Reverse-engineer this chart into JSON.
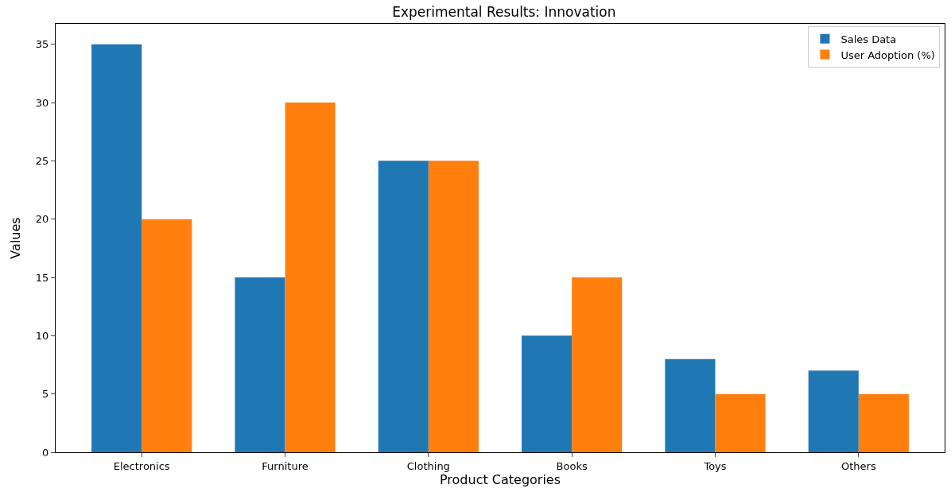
{
  "chart_data": {
    "type": "bar",
    "title": "Experimental Results: Innovation",
    "xlabel": "Product Categories",
    "ylabel": "Values",
    "categories": [
      "Electronics",
      "Furniture",
      "Clothing",
      "Books",
      "Toys",
      "Others"
    ],
    "series": [
      {
        "name": "Sales Data",
        "color": "#1f77b4",
        "values": [
          35,
          15,
          25,
          10,
          8,
          7
        ]
      },
      {
        "name": "User Adoption (%)",
        "color": "#ff7f0e",
        "values": [
          20,
          30,
          25,
          15,
          5,
          5
        ]
      }
    ],
    "ylim": [
      0,
      36.75
    ],
    "yticks": [
      0,
      5,
      10,
      15,
      20,
      25,
      30,
      35
    ],
    "legend": "top right"
  }
}
